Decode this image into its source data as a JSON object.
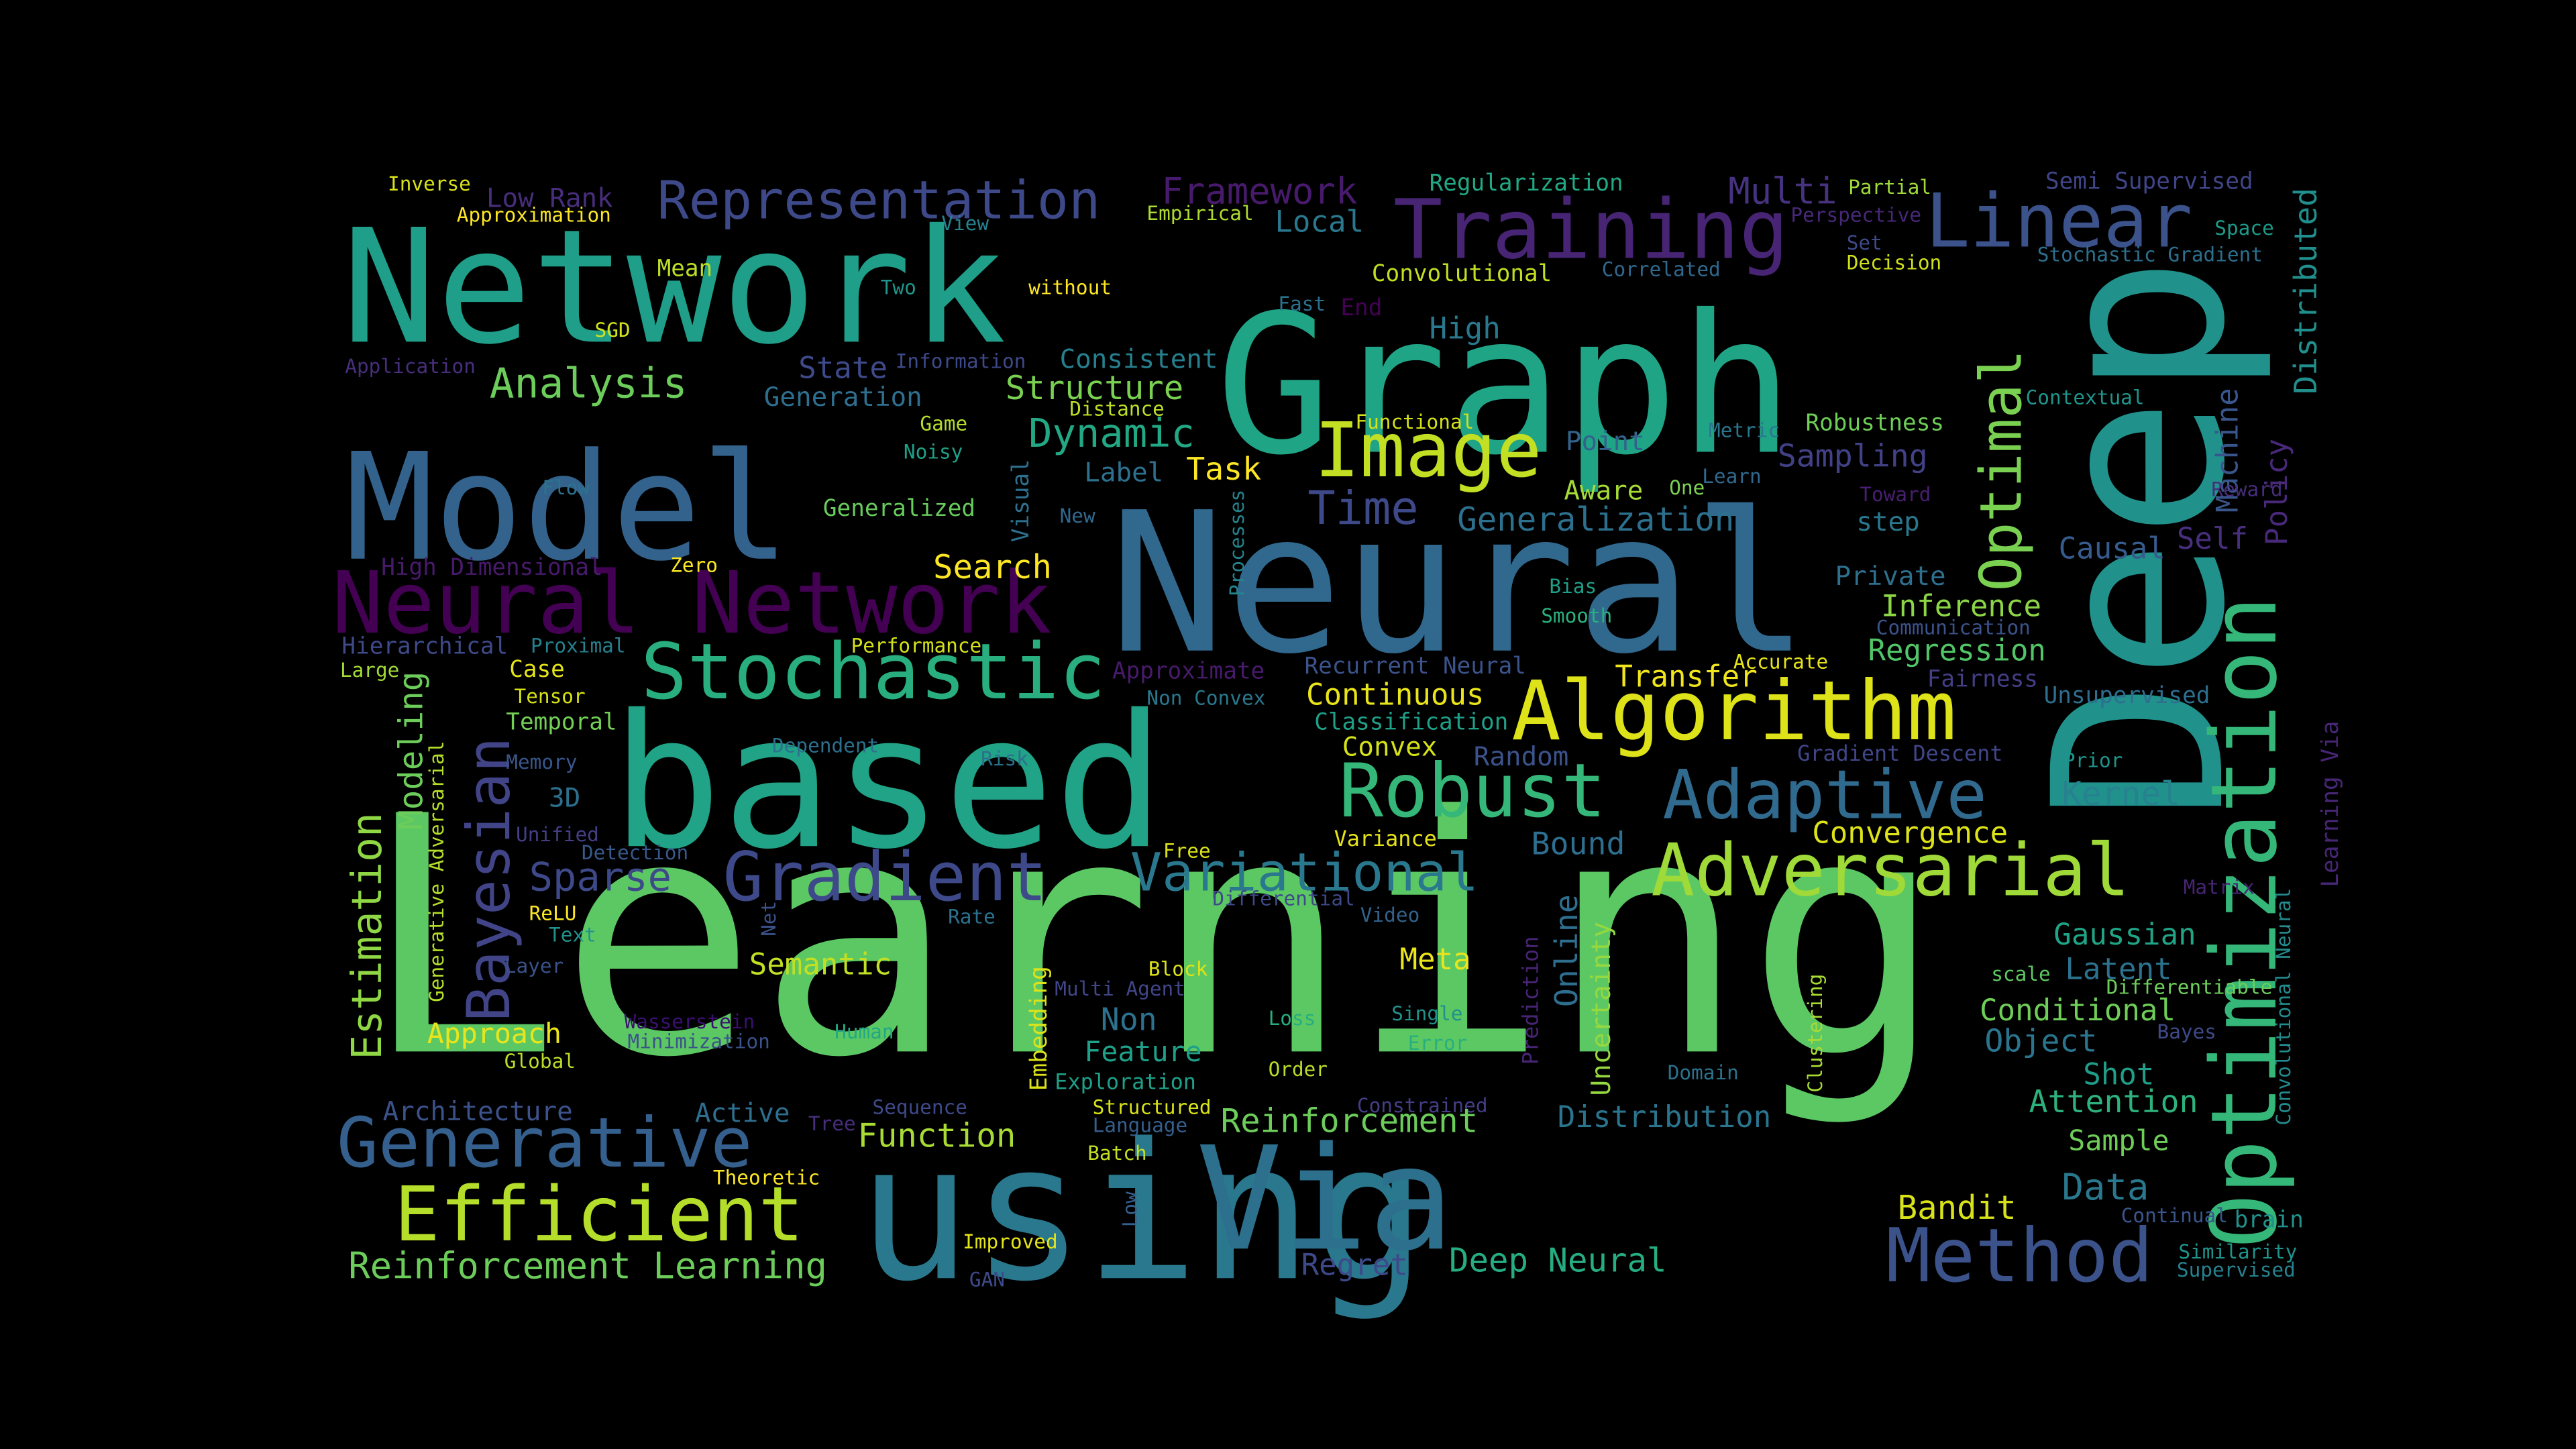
{
  "words": [
    {
      "text": "Learning",
      "color": "#5cc863"
    },
    {
      "text": "Network",
      "color": "#1f9e89"
    },
    {
      "text": "Graph",
      "color": "#20a486"
    },
    {
      "text": "Model",
      "color": "#33638d"
    },
    {
      "text": "Neural",
      "color": "#31688e"
    },
    {
      "text": "Deep",
      "color": "#21918c"
    },
    {
      "text": "based",
      "color": "#20a386"
    },
    {
      "text": "using",
      "color": "#2a788e"
    },
    {
      "text": "Via",
      "color": "#2d708e"
    },
    {
      "text": "Optimization",
      "color": "#35b779"
    },
    {
      "text": "Neural Network",
      "color": "#440154"
    },
    {
      "text": "Algorithm",
      "color": "#dde318"
    },
    {
      "text": "Training",
      "color": "#482475"
    },
    {
      "text": "Linear",
      "color": "#3b528b"
    },
    {
      "text": "Stochastic",
      "color": "#29af7f"
    },
    {
      "text": "Image",
      "color": "#c2df23"
    },
    {
      "text": "Adversarial",
      "color": "#a0da39"
    },
    {
      "text": "Gradient",
      "color": "#3e4989"
    },
    {
      "text": "Generative",
      "color": "#355f8d"
    },
    {
      "text": "Efficient",
      "color": "#b5de2b"
    },
    {
      "text": "Method",
      "color": "#3b528b"
    },
    {
      "text": "Adaptive",
      "color": "#306a8e"
    },
    {
      "text": "Robust",
      "color": "#35b779"
    },
    {
      "text": "Bayesian",
      "color": "#414487"
    },
    {
      "text": "Representation",
      "color": "#3e4989"
    },
    {
      "text": "Variational",
      "color": "#2a788e"
    },
    {
      "text": "Optimal",
      "color": "#7ad151"
    },
    {
      "text": "Estimation",
      "color": "#8fd744"
    },
    {
      "text": "Analysis",
      "color": "#6ccd5a"
    },
    {
      "text": "Reinforcement Learning",
      "color": "#6ccd5a"
    },
    {
      "text": "Framework",
      "color": "#481a6c"
    },
    {
      "text": "Low Rank",
      "color": "#472d7b"
    },
    {
      "text": "Multi",
      "color": "#46327e"
    },
    {
      "text": "Regularization",
      "color": "#22a884"
    },
    {
      "text": "Partial",
      "color": "#9fda3a"
    },
    {
      "text": "Semi Supervised",
      "color": "#404588"
    },
    {
      "text": "Distributed",
      "color": "#218f8d"
    },
    {
      "text": "Inverse",
      "color": "#d8e219"
    },
    {
      "text": "Approximation",
      "color": "#fde725"
    },
    {
      "text": "View",
      "color": "#26828e"
    },
    {
      "text": "Empirical",
      "color": "#addc30"
    },
    {
      "text": "Local",
      "color": "#2a788e"
    },
    {
      "text": "Perspective",
      "color": "#482878"
    },
    {
      "text": "Space",
      "color": "#1f9a8a"
    },
    {
      "text": "Set",
      "color": "#3e4a89"
    },
    {
      "text": "Stochastic Gradient",
      "color": "#2d708e"
    },
    {
      "text": "Decision",
      "color": "#d0e11c"
    },
    {
      "text": "Correlated",
      "color": "#31688e"
    },
    {
      "text": "Convolutional",
      "color": "#c2df23"
    },
    {
      "text": "Mean",
      "color": "#bddf26"
    },
    {
      "text": "Two",
      "color": "#1f958b"
    },
    {
      "text": "without",
      "color": "#fde725"
    },
    {
      "text": "Fast",
      "color": "#2c728e"
    },
    {
      "text": "End",
      "color": "#440154"
    },
    {
      "text": "SGD",
      "color": "#d2e21b"
    },
    {
      "text": "High",
      "color": "#2a788e"
    },
    {
      "text": "Application",
      "color": "#472f7d"
    },
    {
      "text": "Information",
      "color": "#3e4989"
    },
    {
      "text": "Consistent",
      "color": "#277f8e"
    },
    {
      "text": "State",
      "color": "#3e4a89"
    },
    {
      "text": "Structure",
      "color": "#7ad151"
    },
    {
      "text": "Generation",
      "color": "#2e6e8e"
    },
    {
      "text": "Distance",
      "color": "#bbdf27"
    },
    {
      "text": "Functional",
      "color": "#d5e21a"
    },
    {
      "text": "Contextual",
      "color": "#1f958b"
    },
    {
      "text": "Robustness",
      "color": "#6ece58"
    },
    {
      "text": "Metric",
      "color": "#2a768e"
    },
    {
      "text": "Game",
      "color": "#b5de2b"
    },
    {
      "text": "Dynamic",
      "color": "#22a884"
    },
    {
      "text": "Point",
      "color": "#33638d"
    },
    {
      "text": "Sampling",
      "color": "#424186"
    },
    {
      "text": "Machine",
      "color": "#39568c"
    },
    {
      "text": "Policy",
      "color": "#482979"
    },
    {
      "text": "Noisy",
      "color": "#1fa188"
    },
    {
      "text": "Visual",
      "color": "#2d708e"
    },
    {
      "text": "Label",
      "color": "#2d718e"
    },
    {
      "text": "Task",
      "color": "#fde725"
    },
    {
      "text": "Aware",
      "color": "#a5db36"
    },
    {
      "text": "One",
      "color": "#7ad151"
    },
    {
      "text": "Learn",
      "color": "#31688e"
    },
    {
      "text": "Toward",
      "color": "#481f70"
    },
    {
      "text": "Flow",
      "color": "#2c728e"
    },
    {
      "text": "Generalized",
      "color": "#67cc5c"
    },
    {
      "text": "Time",
      "color": "#3e4989"
    },
    {
      "text": "Generalization",
      "color": "#2d708e"
    },
    {
      "text": "step",
      "color": "#2a788e"
    },
    {
      "text": "Causal",
      "color": "#365c8d"
    },
    {
      "text": "Self",
      "color": "#472f7d"
    },
    {
      "text": "New",
      "color": "#31688e"
    },
    {
      "text": "Reward",
      "color": "#472d7b"
    },
    {
      "text": "Processes",
      "color": "#25848e"
    },
    {
      "text": "High Dimensional",
      "color": "#481a6c"
    },
    {
      "text": "Zero",
      "color": "#fde725"
    },
    {
      "text": "Search",
      "color": "#fde725"
    },
    {
      "text": "Private",
      "color": "#2e6f8e"
    },
    {
      "text": "Bias",
      "color": "#1fa088"
    },
    {
      "text": "Smooth",
      "color": "#2ab07f"
    },
    {
      "text": "Inference",
      "color": "#8bd646"
    },
    {
      "text": "Communication",
      "color": "#3b528b"
    },
    {
      "text": "Regression",
      "color": "#52c569"
    },
    {
      "text": "Hierarchical",
      "color": "#3e4a89"
    },
    {
      "text": "Proximal",
      "color": "#26818e"
    },
    {
      "text": "Performance",
      "color": "#d5e21a"
    },
    {
      "text": "Large",
      "color": "#a2da37"
    },
    {
      "text": "Case",
      "color": "#e5e419"
    },
    {
      "text": "Approximate",
      "color": "#481a6c"
    },
    {
      "text": "Recurrent Neural",
      "color": "#3b528b"
    },
    {
      "text": "Transfer",
      "color": "#f1e51d"
    },
    {
      "text": "Accurate",
      "color": "#e5e419"
    },
    {
      "text": "Fairness",
      "color": "#433e85"
    },
    {
      "text": "Tensor",
      "color": "#d8e219"
    },
    {
      "text": "Non Convex",
      "color": "#2a788e"
    },
    {
      "text": "Continuous",
      "color": "#eae51a"
    },
    {
      "text": "Unsupervised",
      "color": "#2e6e8e"
    },
    {
      "text": "Temporal",
      "color": "#73d056"
    },
    {
      "text": "Classification",
      "color": "#1fa088"
    },
    {
      "text": "Learning Via",
      "color": "#482677"
    },
    {
      "text": "Dependent",
      "color": "#2d708e"
    },
    {
      "text": "Risk",
      "color": "#2d708e"
    },
    {
      "text": "Convex",
      "color": "#d5e21a"
    },
    {
      "text": "Random",
      "color": "#3b528b"
    },
    {
      "text": "Gradient Descent",
      "color": "#404688"
    },
    {
      "text": "Prior",
      "color": "#1f948c"
    },
    {
      "text": "Memory",
      "color": "#39568c"
    },
    {
      "text": "3D",
      "color": "#2d708e"
    },
    {
      "text": "Kernel",
      "color": "#26828e"
    },
    {
      "text": "Modeling",
      "color": "#6ccd5a"
    },
    {
      "text": "Unified",
      "color": "#433e85"
    },
    {
      "text": "Free",
      "color": "#d8e219"
    },
    {
      "text": "Variance",
      "color": "#e5e419"
    },
    {
      "text": "Bound",
      "color": "#2e6e8e"
    },
    {
      "text": "Convergence",
      "color": "#dde318"
    },
    {
      "text": "Generative Adversarial",
      "color": "#b5de2b"
    },
    {
      "text": "Detection",
      "color": "#38598c"
    },
    {
      "text": "Sparse",
      "color": "#3e4989"
    },
    {
      "text": "Matrix",
      "color": "#482475"
    },
    {
      "text": "Convolutional Neural",
      "color": "#238a8d"
    },
    {
      "text": "Net",
      "color": "#3b528b"
    },
    {
      "text": "Differential",
      "color": "#3e4989"
    },
    {
      "text": "Video",
      "color": "#33638d"
    },
    {
      "text": "Prediction",
      "color": "#482475"
    },
    {
      "text": "Online",
      "color": "#2e6e8e"
    },
    {
      "text": "Uncertainty",
      "color": "#95d840"
    },
    {
      "text": "ReLU",
      "color": "#fde725"
    },
    {
      "text": "Rate",
      "color": "#2c728e"
    },
    {
      "text": "Text",
      "color": "#21918c"
    },
    {
      "text": "Gaussian",
      "color": "#20a486"
    },
    {
      "text": "Layer",
      "color": "#3b528b"
    },
    {
      "text": "Semantic",
      "color": "#c2df23"
    },
    {
      "text": "Meta",
      "color": "#eae51a"
    },
    {
      "text": "Block",
      "color": "#dde318"
    },
    {
      "text": "scale",
      "color": "#5ec962"
    },
    {
      "text": "Latent",
      "color": "#2c728e"
    },
    {
      "text": "Differentiable",
      "color": "#6ccd5a"
    },
    {
      "text": "Multi Agent",
      "color": "#404688"
    },
    {
      "text": "Wasserstein",
      "color": "#3b0f70"
    },
    {
      "text": "Clustering",
      "color": "#a8db34"
    },
    {
      "text": "Conditional",
      "color": "#6ece58"
    },
    {
      "text": "Non",
      "color": "#2c728e"
    },
    {
      "text": "Single",
      "color": "#21918c"
    },
    {
      "text": "Loss",
      "color": "#27ad81"
    },
    {
      "text": "Object",
      "color": "#2b748e"
    },
    {
      "text": "Approach",
      "color": "#eae51a"
    },
    {
      "text": "Minimization",
      "color": "#3b528b"
    },
    {
      "text": "Human",
      "color": "#22a884"
    },
    {
      "text": "Feature",
      "color": "#1fa088"
    },
    {
      "text": "Error",
      "color": "#29af7f"
    },
    {
      "text": "Bayes",
      "color": "#3e4a89"
    },
    {
      "text": "Embedding",
      "color": "#dde318"
    },
    {
      "text": "Global",
      "color": "#b8de29"
    },
    {
      "text": "Exploration",
      "color": "#1fa088"
    },
    {
      "text": "Domain",
      "color": "#2c728e"
    },
    {
      "text": "Shot",
      "color": "#1f9e89"
    },
    {
      "text": "Order",
      "color": "#b8de29"
    },
    {
      "text": "Constrained",
      "color": "#433e85"
    },
    {
      "text": "Architecture",
      "color": "#3b528b"
    },
    {
      "text": "Sequence",
      "color": "#3e4989"
    },
    {
      "text": "Active",
      "color": "#2e6e8e"
    },
    {
      "text": "Structured",
      "color": "#d8e219"
    },
    {
      "text": "Tree",
      "color": "#472d7b"
    },
    {
      "text": "Language",
      "color": "#355f8d"
    },
    {
      "text": "Reinforcement",
      "color": "#6ccd5a"
    },
    {
      "text": "Distribution",
      "color": "#2b748e"
    },
    {
      "text": "Attention",
      "color": "#2db27d"
    },
    {
      "text": "Function",
      "color": "#a8db34"
    },
    {
      "text": "Sample",
      "color": "#6ece58"
    },
    {
      "text": "Theoretic",
      "color": "#fde725"
    },
    {
      "text": "Batch",
      "color": "#c2df23"
    },
    {
      "text": "Data",
      "color": "#2a788e"
    },
    {
      "text": "Low",
      "color": "#35608d"
    },
    {
      "text": "Bandit",
      "color": "#d8e219"
    },
    {
      "text": "Continual",
      "color": "#39568c"
    },
    {
      "text": "brain",
      "color": "#21918c"
    },
    {
      "text": "Improved",
      "color": "#e5e419"
    },
    {
      "text": "Regret",
      "color": "#3e4989"
    },
    {
      "text": "Deep Neural",
      "color": "#26ad81"
    },
    {
      "text": "Similarity",
      "color": "#1f948c"
    },
    {
      "text": "GAN",
      "color": "#3e4989"
    },
    {
      "text": "Supervised",
      "color": "#26828e"
    }
  ]
}
